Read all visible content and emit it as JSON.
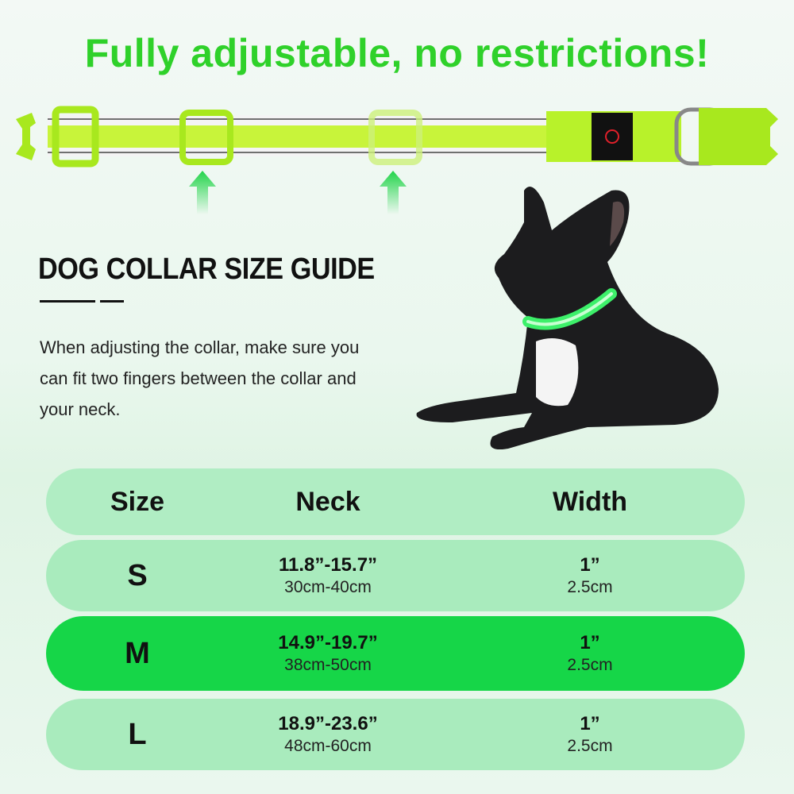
{
  "headline": "Fully adjustable, no restrictions!",
  "guide": {
    "title": "DOG COLLAR SIZE GUIDE",
    "description": "When adjusting the collar, make sure you can fit two fingers between the collar and your neck."
  },
  "table": {
    "headers": [
      "Size",
      "Neck",
      "Width"
    ],
    "rows": [
      {
        "size": "S",
        "neck_in": "11.8”-15.7”",
        "neck_cm": "30cm-40cm",
        "width_in": "1”",
        "width_cm": "2.5cm"
      },
      {
        "size": "M",
        "neck_in": "14.9”-19.7”",
        "neck_cm": "38cm-50cm",
        "width_in": "1”",
        "width_cm": "2.5cm"
      },
      {
        "size": "L",
        "neck_in": "18.9”-23.6”",
        "neck_cm": "48cm-60cm",
        "width_in": "1”",
        "width_cm": "2.5cm"
      }
    ],
    "highlighted_row": "M"
  },
  "colors": {
    "headline": "#2fd12a",
    "collar": "#b8f22a",
    "highlight": "#16d648",
    "row": "#a9ebbd"
  }
}
